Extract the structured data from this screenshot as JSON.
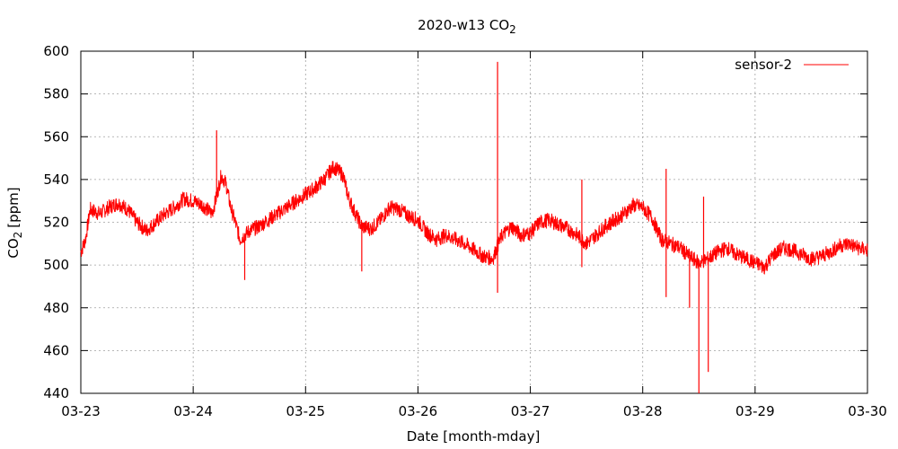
{
  "chart_data": {
    "type": "line",
    "title": "2020-w13 CO",
    "title_subscript": "2",
    "xlabel": "Date [month-mday]",
    "ylabel": "CO",
    "ylabel_subscript": "2",
    "ylabel_unit": "[ppm]",
    "xlim": [
      "03-23",
      "03-30"
    ],
    "ylim": [
      440,
      600
    ],
    "x_ticks": [
      "03-23",
      "03-24",
      "03-25",
      "03-26",
      "03-27",
      "03-28",
      "03-29",
      "03-30"
    ],
    "y_ticks": [
      "440",
      "460",
      "480",
      "500",
      "520",
      "540",
      "560",
      "580",
      "600"
    ],
    "grid": true,
    "legend": {
      "placement": "top-right"
    },
    "series": [
      {
        "name": "sensor-2",
        "color": "#ff0000",
        "points": [
          [
            "03-23 00:00",
            506
          ],
          [
            "03-23 01:00",
            512
          ],
          [
            "03-23 02:00",
            526
          ],
          [
            "03-23 04:00",
            524
          ],
          [
            "03-23 06:00",
            527
          ],
          [
            "03-23 08:00",
            529
          ],
          [
            "03-23 10:00",
            526
          ],
          [
            "03-23 12:00",
            520
          ],
          [
            "03-23 14:00",
            516
          ],
          [
            "03-23 16:00",
            520
          ],
          [
            "03-23 18:00",
            524
          ],
          [
            "03-23 20:00",
            527
          ],
          [
            "03-23 22:00",
            531
          ],
          [
            "03-24 00:00",
            530
          ],
          [
            "03-24 02:00",
            528
          ],
          [
            "03-24 04:00",
            524
          ],
          [
            "03-24 05:00",
            532
          ],
          [
            "03-24 06:00",
            542
          ],
          [
            "03-24 07:00",
            538
          ],
          [
            "03-24 08:00",
            527
          ],
          [
            "03-24 09:00",
            520
          ],
          [
            "03-24 10:00",
            512
          ],
          [
            "03-24 12:00",
            516
          ],
          [
            "03-24 14:00",
            518
          ],
          [
            "03-24 16:00",
            521
          ],
          [
            "03-24 18:00",
            524
          ],
          [
            "03-24 20:00",
            527
          ],
          [
            "03-24 22:00",
            530
          ],
          [
            "03-25 00:00",
            533
          ],
          [
            "03-25 02:00",
            536
          ],
          [
            "03-25 04:00",
            540
          ],
          [
            "03-25 06:00",
            546
          ],
          [
            "03-25 08:00",
            542
          ],
          [
            "03-25 09:00",
            533
          ],
          [
            "03-25 10:00",
            527
          ],
          [
            "03-25 12:00",
            518
          ],
          [
            "03-25 14:00",
            517
          ],
          [
            "03-25 16:00",
            521
          ],
          [
            "03-25 18:00",
            527
          ],
          [
            "03-25 20:00",
            526
          ],
          [
            "03-25 22:00",
            523
          ],
          [
            "03-26 00:00",
            521
          ],
          [
            "03-26 02:00",
            515
          ],
          [
            "03-26 04:00",
            512
          ],
          [
            "03-26 06:00",
            514
          ],
          [
            "03-26 08:00",
            512
          ],
          [
            "03-26 10:00",
            510
          ],
          [
            "03-26 12:00",
            507
          ],
          [
            "03-26 14:00",
            504
          ],
          [
            "03-26 16:00",
            503
          ],
          [
            "03-26 17:00",
            509
          ],
          [
            "03-26 18:00",
            514
          ],
          [
            "03-26 20:00",
            518
          ],
          [
            "03-26 22:00",
            514
          ],
          [
            "03-27 00:00",
            515
          ],
          [
            "03-27 02:00",
            520
          ],
          [
            "03-27 04:00",
            521
          ],
          [
            "03-27 06:00",
            519
          ],
          [
            "03-27 08:00",
            517
          ],
          [
            "03-27 10:00",
            514
          ],
          [
            "03-27 12:00",
            510
          ],
          [
            "03-27 14:00",
            514
          ],
          [
            "03-27 16:00",
            518
          ],
          [
            "03-27 18:00",
            521
          ],
          [
            "03-27 20:00",
            524
          ],
          [
            "03-27 22:00",
            528
          ],
          [
            "03-28 00:00",
            527
          ],
          [
            "03-28 02:00",
            522
          ],
          [
            "03-28 04:00",
            512
          ],
          [
            "03-28 06:00",
            510
          ],
          [
            "03-28 08:00",
            508
          ],
          [
            "03-28 10:00",
            504
          ],
          [
            "03-28 12:00",
            501
          ],
          [
            "03-28 14:00",
            503
          ],
          [
            "03-28 16:00",
            506
          ],
          [
            "03-28 18:00",
            508
          ],
          [
            "03-28 20:00",
            505
          ],
          [
            "03-28 22:00",
            503
          ],
          [
            "03-29 00:00",
            501
          ],
          [
            "03-29 02:00",
            499
          ],
          [
            "03-29 04:00",
            505
          ],
          [
            "03-29 06:00",
            508
          ],
          [
            "03-29 08:00",
            507
          ],
          [
            "03-29 10:00",
            505
          ],
          [
            "03-29 12:00",
            503
          ],
          [
            "03-29 14:00",
            504
          ],
          [
            "03-29 16:00",
            506
          ],
          [
            "03-29 18:00",
            509
          ],
          [
            "03-29 20:00",
            510
          ],
          [
            "03-29 22:00",
            508
          ],
          [
            "03-30 00:00",
            507
          ]
        ],
        "spikes": [
          [
            "03-24 05:00",
            563
          ],
          [
            "03-24 11:00",
            493
          ],
          [
            "03-25 12:00",
            497
          ],
          [
            "03-26 17:00",
            595
          ],
          [
            "03-26 17:00",
            487
          ],
          [
            "03-27 11:00",
            540
          ],
          [
            "03-27 11:00",
            499
          ],
          [
            "03-28 05:00",
            545
          ],
          [
            "03-28 05:00",
            485
          ],
          [
            "03-28 10:00",
            480
          ],
          [
            "03-28 12:00",
            440
          ],
          [
            "03-28 13:00",
            532
          ],
          [
            "03-28 14:00",
            450
          ]
        ]
      }
    ]
  }
}
